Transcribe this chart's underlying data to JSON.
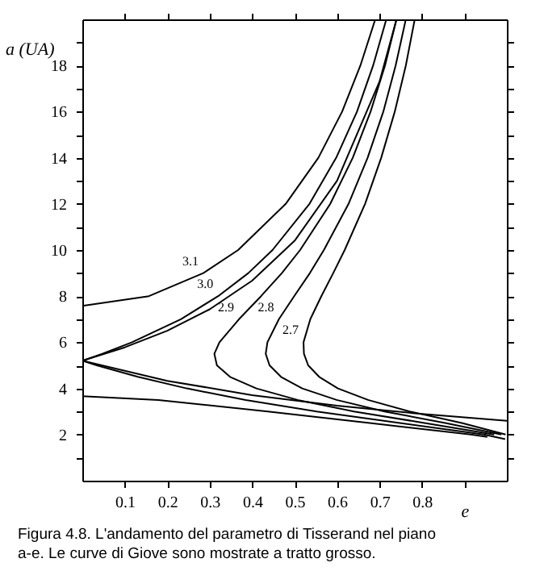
{
  "chart_data": {
    "type": "line",
    "xlabel": "e",
    "ylabel": "a (UA)",
    "xlim": [
      0,
      1
    ],
    "ylim": [
      0,
      20
    ],
    "xticks": [
      0.1,
      0.2,
      0.3,
      0.4,
      0.5,
      0.6,
      0.7,
      0.8,
      {
        "value": 0.9,
        "label": null
      }
    ],
    "yticks": [
      {
        "value": 1,
        "label": null
      },
      2,
      {
        "value": 3,
        "label": null
      },
      4,
      {
        "value": 5,
        "label": null
      },
      6,
      {
        "value": 7,
        "label": null
      },
      8,
      {
        "value": 9,
        "label": null
      },
      10,
      {
        "value": 11,
        "label": null
      },
      12,
      {
        "value": 13,
        "label": null
      },
      14,
      {
        "value": 15,
        "label": null
      },
      16,
      {
        "value": 17,
        "label": null
      },
      18,
      {
        "value": 19,
        "label": null
      }
    ],
    "grid": false,
    "marker": "none",
    "line_style": "solid",
    "series": [
      {
        "color": "#000000",
        "x": [
          0,
          0.179,
          0.437,
          0.677,
          0.915,
          0.954
        ],
        "values": [
          3.66,
          3.5,
          3,
          2.5,
          2,
          1.9
        ]
      },
      {
        "color": "#000000",
        "x": [
          0,
          0.157,
          0.285,
          0.367,
          0.479,
          0.556,
          0.612,
          0.655,
          0.69
        ],
        "values": [
          7.58,
          8,
          9,
          10,
          12,
          14,
          16,
          18,
          20
        ]
      },
      {
        "color": "#000000",
        "x": [
          0.996,
          0.946,
          0.748,
          0.552,
          0.385,
          0.246,
          0.131,
          0.034,
          0,
          0.047,
          0.117,
          0.232,
          0.32,
          0.391,
          0.448,
          0.535,
          0.598,
          0.647,
          0.685,
          0.716
        ],
        "values": [
          1.8,
          2,
          2.5,
          3,
          3.5,
          4,
          4.5,
          5,
          5.2,
          5.5,
          6,
          7,
          8,
          9,
          10,
          12,
          14,
          16,
          18,
          20
        ]
      },
      {
        "color": "#000000",
        "x": [
          0.97,
          0.806,
          0.64,
          0.507,
          0.41,
          0.348,
          0.317,
          0.311,
          0.323,
          0.369,
          0.421,
          0.47,
          0.513,
          0.584,
          0.637,
          0.679,
          0.713,
          0.74
        ],
        "values": [
          2,
          2.5,
          3,
          3.5,
          4,
          4.5,
          5,
          5.5,
          6,
          7,
          8,
          9,
          10,
          12,
          14,
          16,
          18,
          20
        ]
      },
      {
        "color": "#000000",
        "x": [
          0.987,
          0.855,
          0.712,
          0.599,
          0.518,
          0.468,
          0.441,
          0.432,
          0.436,
          0.463,
          0.499,
          0.536,
          0.569,
          0.627,
          0.672,
          0.709,
          0.738,
          0.762
        ],
        "values": [
          2,
          2.5,
          3,
          3.5,
          4,
          4.5,
          5,
          5.5,
          6,
          7,
          8,
          9,
          10,
          12,
          14,
          16,
          18,
          20
        ]
      },
      {
        "color": "#000000",
        "x": [
          0.997,
          0.894,
          0.771,
          0.673,
          0.602,
          0.558,
          0.532,
          0.522,
          0.521,
          0.537,
          0.563,
          0.591,
          0.618,
          0.666,
          0.704,
          0.736,
          0.762,
          0.783
        ],
        "values": [
          2,
          2.5,
          3,
          3.5,
          4,
          4.5,
          5,
          5.5,
          6,
          7,
          8,
          9,
          10,
          12,
          14,
          16,
          18,
          20
        ]
      },
      {
        "color": "#000000",
        "x": [
          0,
          0.1,
          0.2,
          0.3,
          0.4,
          0.5,
          0.6,
          0.7,
          0.74
        ],
        "values": [
          5.2,
          5.78,
          6.5,
          7.43,
          8.67,
          10.4,
          13,
          17.3,
          20
        ]
      },
      {
        "color": "#000000",
        "x": [
          0,
          0.2,
          0.4,
          0.6,
          0.8,
          1
        ],
        "values": [
          5.2,
          4.33,
          3.71,
          3.25,
          2.89,
          2.6
        ]
      }
    ],
    "annotations": [
      {
        "text": "3.1",
        "x": 0.285,
        "y": 9
      },
      {
        "text": "3.0",
        "x": 0.32,
        "y": 8
      },
      {
        "text": "2.9",
        "x": 0.369,
        "y": 7
      },
      {
        "text": "2.8",
        "x": 0.463,
        "y": 7
      },
      {
        "text": "2.7",
        "x": 0.521,
        "y": 6
      },
      "Figura 4.8. L'andamento del parametro di Tisserand nel piano a-e. Le curve di Giove sono mostrate a tratto grosso."
    ]
  }
}
